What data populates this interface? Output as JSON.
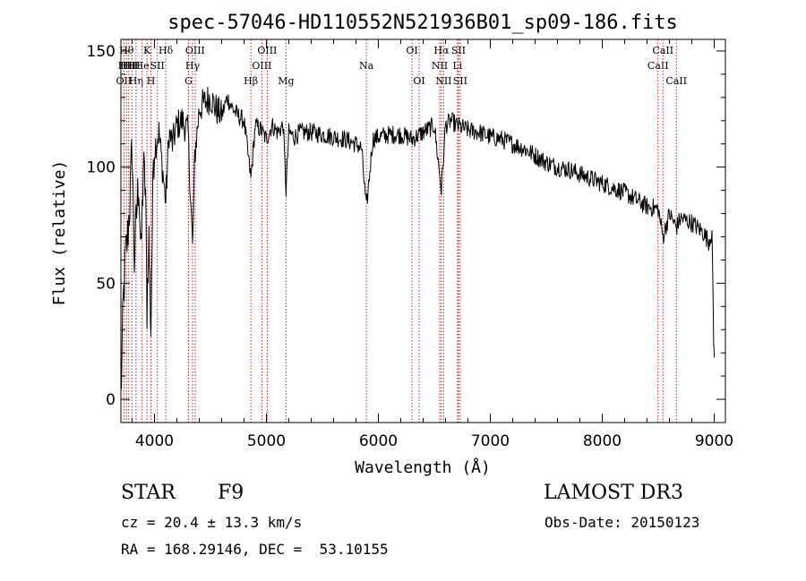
{
  "chart_data": {
    "type": "line",
    "title": "spec-57046-HD110552N521936B01_sp09-186.fits",
    "xlabel": "Wavelength (Å)",
    "ylabel": "Flux (relative)",
    "xlim": [
      3700,
      9100
    ],
    "ylim": [
      -10,
      155
    ],
    "xticks": [
      4000,
      5000,
      6000,
      7000,
      8000,
      9000
    ],
    "yticks": [
      0,
      50,
      100,
      150
    ],
    "grid": false,
    "series": [
      {
        "name": "spectrum",
        "x": [
          3700,
          3720,
          3740,
          3760,
          3780,
          3800,
          3820,
          3840,
          3860,
          3880,
          3900,
          3920,
          3933,
          3950,
          3968,
          3990,
          4010,
          4040,
          4070,
          4101,
          4130,
          4160,
          4200,
          4250,
          4300,
          4340,
          4360,
          4400,
          4450,
          4500,
          4550,
          4600,
          4650,
          4700,
          4750,
          4800,
          4861,
          4900,
          4950,
          5000,
          5050,
          5100,
          5150,
          5175,
          5200,
          5250,
          5300,
          5400,
          5500,
          5600,
          5700,
          5800,
          5850,
          5893,
          5950,
          6000,
          6100,
          6200,
          6300,
          6400,
          6500,
          6563,
          6600,
          6650,
          6700,
          6800,
          6900,
          7000,
          7100,
          7200,
          7300,
          7400,
          7500,
          7600,
          7700,
          7800,
          7900,
          8000,
          8100,
          8200,
          8300,
          8400,
          8500,
          8542,
          8600,
          8662,
          8700,
          8750,
          8800,
          8850,
          8900,
          8950,
          8980,
          8995,
          9000
        ],
        "values": [
          0,
          40,
          60,
          70,
          85,
          110,
          60,
          80,
          95,
          60,
          100,
          90,
          40,
          70,
          30,
          105,
          110,
          115,
          100,
          85,
          115,
          110,
          118,
          120,
          115,
          65,
          105,
          125,
          128,
          130,
          125,
          122,
          130,
          125,
          122,
          120,
          95,
          118,
          116,
          112,
          118,
          115,
          118,
          90,
          115,
          113,
          115,
          115,
          114,
          113,
          112,
          110,
          108,
          82,
          112,
          113,
          114,
          114,
          112,
          115,
          118,
          90,
          118,
          120,
          118,
          116,
          115,
          113,
          112,
          110,
          108,
          105,
          102,
          100,
          99,
          97,
          95,
          93,
          91,
          89,
          86,
          83,
          82,
          70,
          80,
          74,
          78,
          77,
          76,
          74,
          72,
          68,
          72,
          25,
          18
        ]
      }
    ],
    "line_marks": [
      {
        "wl": 3727,
        "labels": [
          "OII"
        ],
        "row": 2
      },
      {
        "wl": 3750,
        "labels": [
          "Hθ",
          "HH"
        ],
        "row": 0
      },
      {
        "wl": 3770,
        "labels": [
          "HH"
        ],
        "row": 1
      },
      {
        "wl": 3798,
        "labels": [
          "HH"
        ],
        "row": 1
      },
      {
        "wl": 3835,
        "labels": [
          "Hη"
        ],
        "row": 2
      },
      {
        "wl": 3889,
        "labels": [
          "He"
        ],
        "row": 1
      },
      {
        "wl": 3933,
        "labels": [
          "K"
        ],
        "row": 0
      },
      {
        "wl": 3968,
        "labels": [
          "H"
        ],
        "row": 2
      },
      {
        "wl": 4026,
        "labels": [
          "SII"
        ],
        "row": 1
      },
      {
        "wl": 4101,
        "labels": [
          "Hδ"
        ],
        "row": 0
      },
      {
        "wl": 4304,
        "labels": [
          "G"
        ],
        "row": 2
      },
      {
        "wl": 4340,
        "labels": [
          "Hγ"
        ],
        "row": 1
      },
      {
        "wl": 4363,
        "labels": [
          "OIII"
        ],
        "row": 0
      },
      {
        "wl": 4861,
        "labels": [
          "Hβ"
        ],
        "row": 2
      },
      {
        "wl": 4959,
        "labels": [
          "OIII"
        ],
        "row": 1
      },
      {
        "wl": 5007,
        "labels": [
          "OIII"
        ],
        "row": 0
      },
      {
        "wl": 5175,
        "labels": [
          "Mg"
        ],
        "row": 2
      },
      {
        "wl": 5893,
        "labels": [
          "Na"
        ],
        "row": 1
      },
      {
        "wl": 6300,
        "labels": [
          "OI"
        ],
        "row": 0
      },
      {
        "wl": 6364,
        "labels": [
          "OI"
        ],
        "row": 2
      },
      {
        "wl": 6548,
        "labels": [
          "NII"
        ],
        "row": 1
      },
      {
        "wl": 6563,
        "labels": [
          "Hα"
        ],
        "row": 0
      },
      {
        "wl": 6583,
        "labels": [
          "NII"
        ],
        "row": 2
      },
      {
        "wl": 6707,
        "labels": [
          "Li"
        ],
        "row": 1
      },
      {
        "wl": 6716,
        "labels": [
          "SII"
        ],
        "row": 0
      },
      {
        "wl": 6731,
        "labels": [
          "SII"
        ],
        "row": 2
      },
      {
        "wl": 8498,
        "labels": [
          "CaII"
        ],
        "row": 1
      },
      {
        "wl": 8542,
        "labels": [
          "CaII"
        ],
        "row": 0
      },
      {
        "wl": 8662,
        "labels": [
          "CaII"
        ],
        "row": 2
      }
    ]
  },
  "info": {
    "object_class": "STAR",
    "subclass": "F9",
    "survey": "LAMOST DR3",
    "redshift": "cz = 20.4 ± 13.3 km/s",
    "obs_date": "Obs-Date: 20150123",
    "coords": "RA = 168.29146, DEC =  53.10155"
  },
  "colors": {
    "line_marker": "#c8201e",
    "spectrum": "#000000",
    "background": "#ffffff"
  }
}
